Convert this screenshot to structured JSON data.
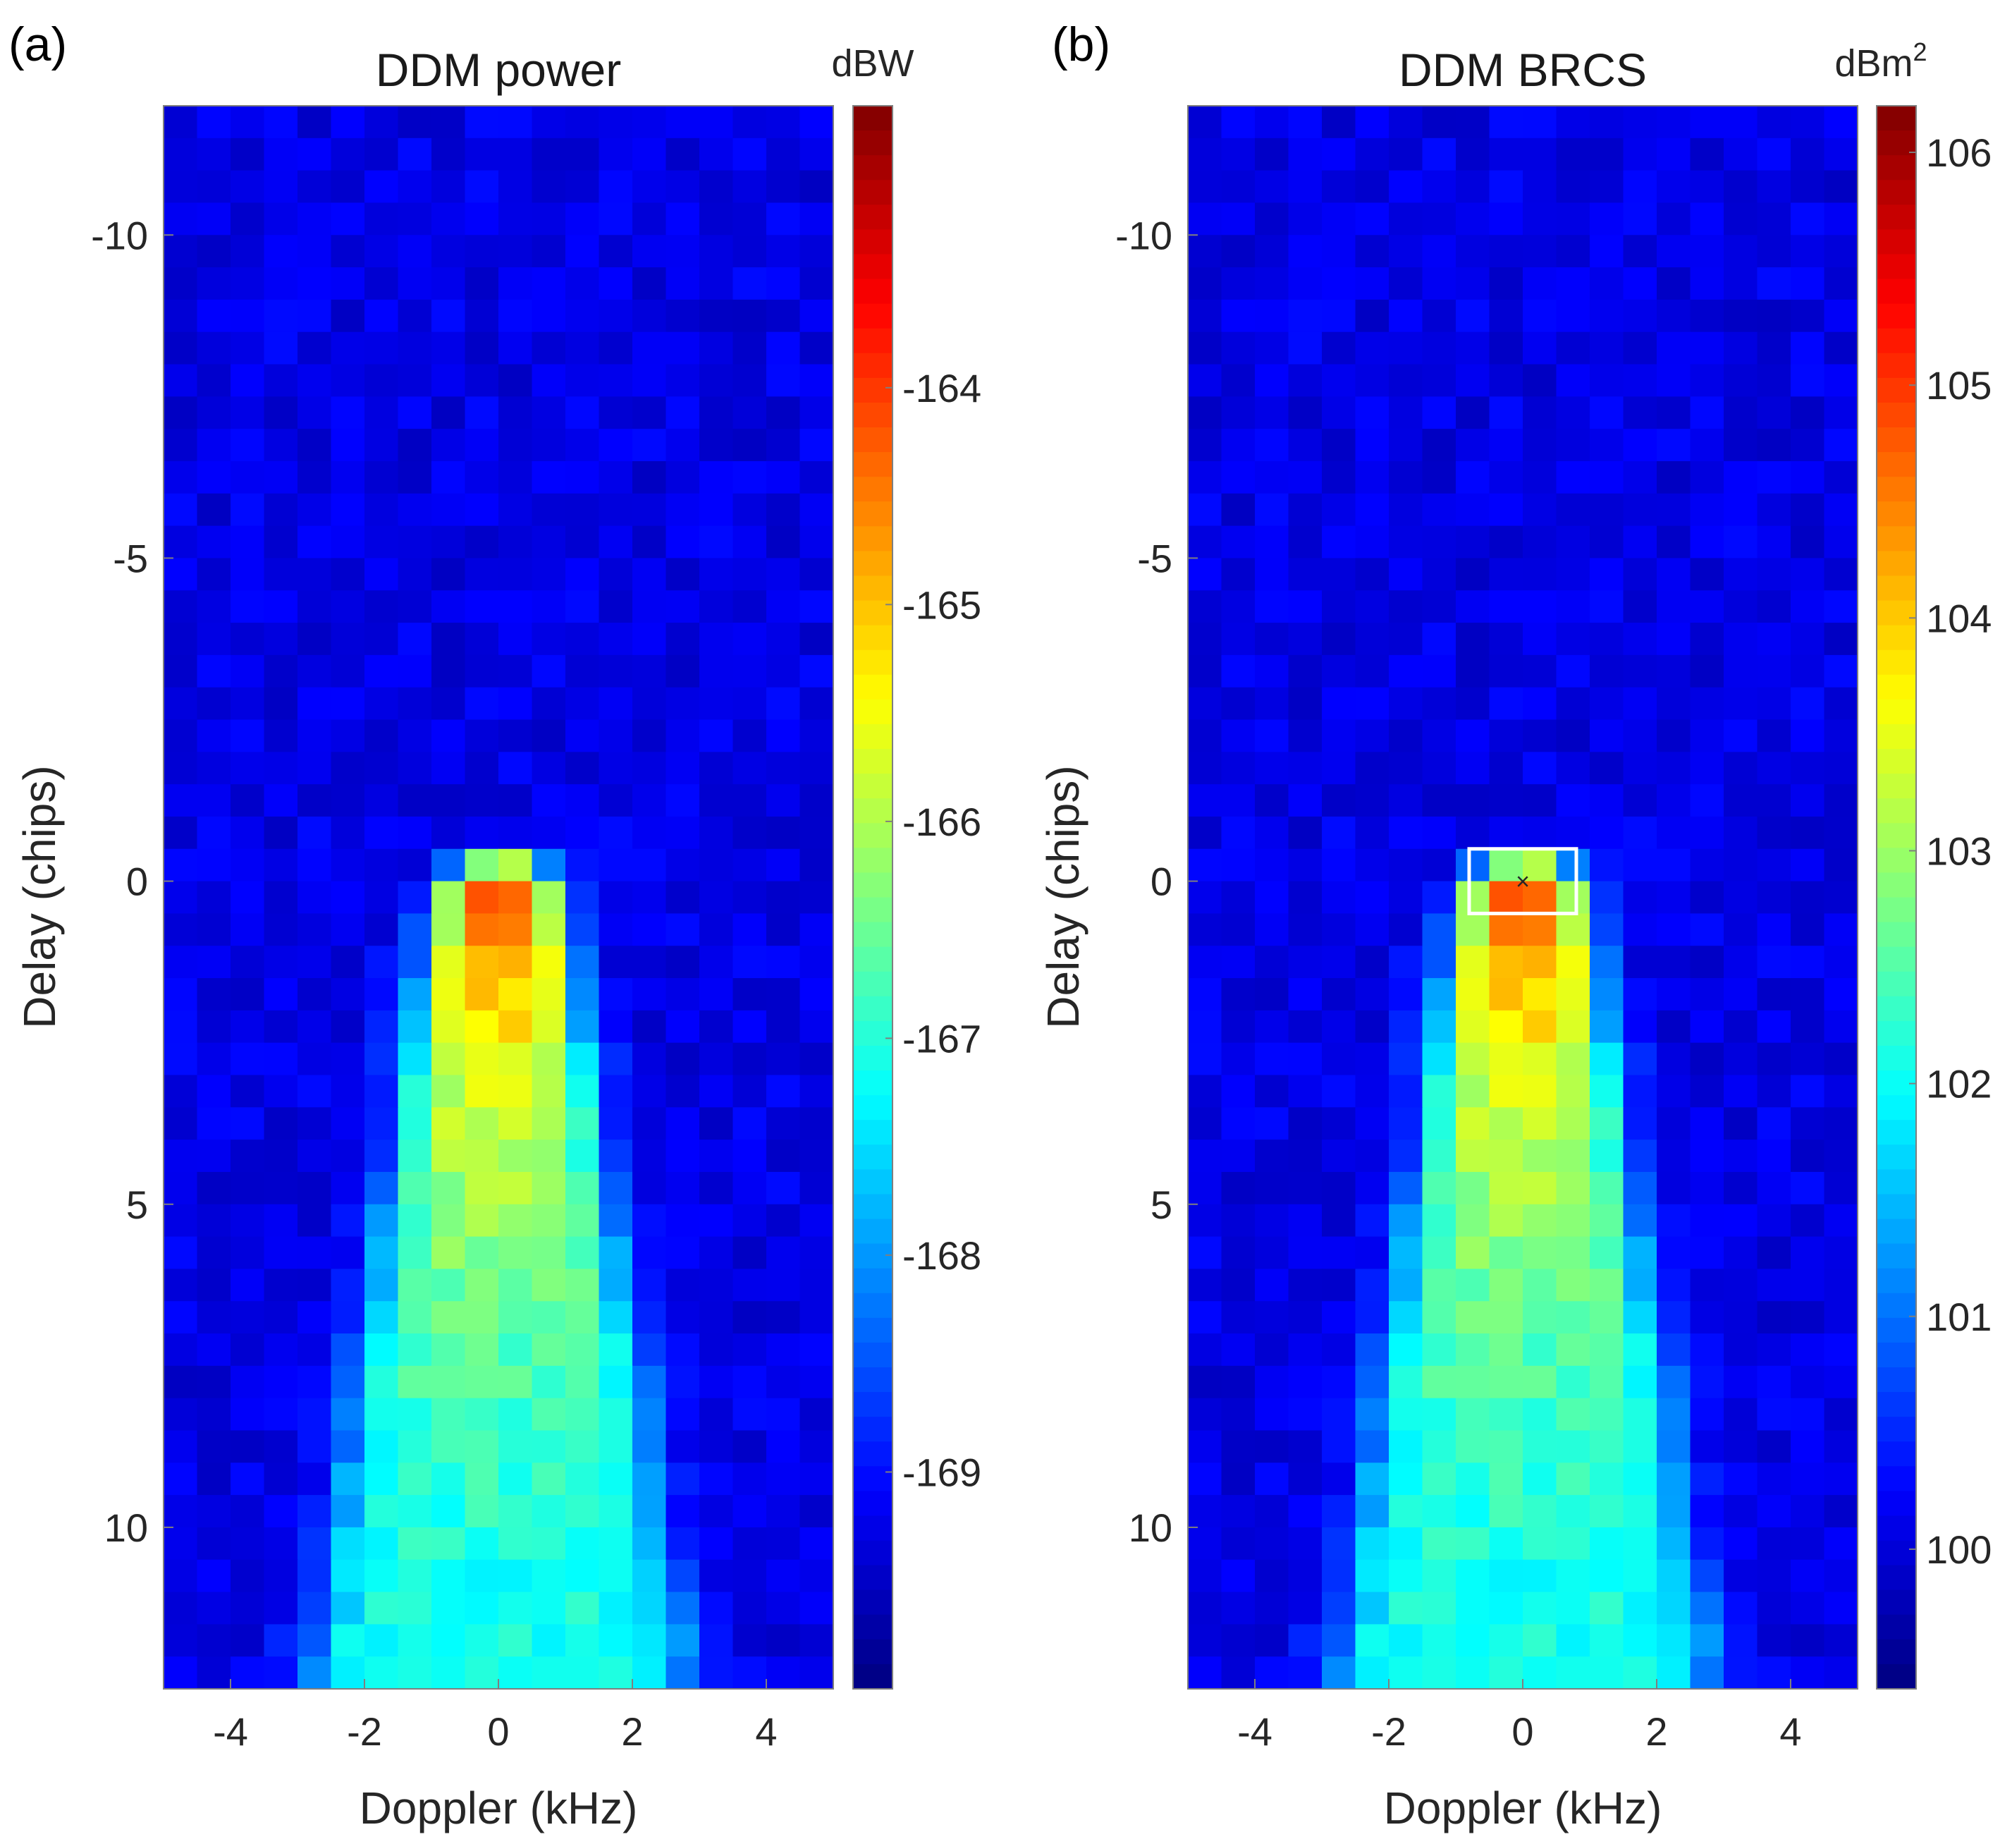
{
  "chart_data": [
    {
      "type": "heatmap",
      "panel_label": "(a)",
      "title": "DDM power",
      "xlabel": "Doppler (kHz)",
      "ylabel": "Delay (chips)",
      "xlim": [
        -5,
        5
      ],
      "ylim": [
        -12,
        12.5
      ],
      "y_reversed": true,
      "xticks": [
        -4,
        -2,
        0,
        2,
        4
      ],
      "xtick_labels": [
        "-4",
        "-2",
        "0",
        "2",
        "4"
      ],
      "yticks": [
        -10,
        -5,
        0,
        5,
        10
      ],
      "ytick_labels": [
        "-10",
        "-5",
        "0",
        "5",
        "10"
      ],
      "grid": false,
      "colormap": "jet",
      "colorbar": {
        "unit": "dBW",
        "unit_superscript": "",
        "range": [
          -170,
          -162.7
        ],
        "ticks": [
          -164,
          -165,
          -166,
          -167,
          -168,
          -169
        ],
        "tick_labels": [
          "-164",
          "-165",
          "-166",
          "-167",
          "-168",
          "-169"
        ]
      },
      "grid_shape": {
        "doppler_bins": 20,
        "delay_bins": 49
      },
      "specular_peak": {
        "doppler_khz": 0,
        "delay_chips": 0
      },
      "seed": 7,
      "highlight_box": null
    },
    {
      "type": "heatmap",
      "panel_label": "(b)",
      "title": "DDM BRCS",
      "xlabel": "Doppler (kHz)",
      "ylabel": "Delay (chips)",
      "xlim": [
        -5,
        5
      ],
      "ylim": [
        -12,
        12.5
      ],
      "y_reversed": true,
      "xticks": [
        -4,
        -2,
        0,
        2,
        4
      ],
      "xtick_labels": [
        "-4",
        "-2",
        "0",
        "2",
        "4"
      ],
      "yticks": [
        -10,
        -5,
        0,
        5,
        10
      ],
      "ytick_labels": [
        "-10",
        "-5",
        "0",
        "5",
        "10"
      ],
      "grid": false,
      "colormap": "jet",
      "colorbar": {
        "unit": "dBm",
        "unit_superscript": "2",
        "range": [
          99.4,
          106.2
        ],
        "ticks": [
          106,
          105,
          104,
          103,
          102,
          101,
          100
        ],
        "tick_labels": [
          "106",
          "105",
          "104",
          "103",
          "102",
          "101",
          "100"
        ]
      },
      "grid_shape": {
        "doppler_bins": 20,
        "delay_bins": 49
      },
      "specular_peak": {
        "doppler_khz": 0,
        "delay_chips": 0
      },
      "seed": 7,
      "highlight_box": {
        "doppler_range_khz": [
          -0.8,
          0.8
        ],
        "delay_range_chips": [
          -0.5,
          0.5
        ],
        "marker": "×"
      }
    }
  ]
}
